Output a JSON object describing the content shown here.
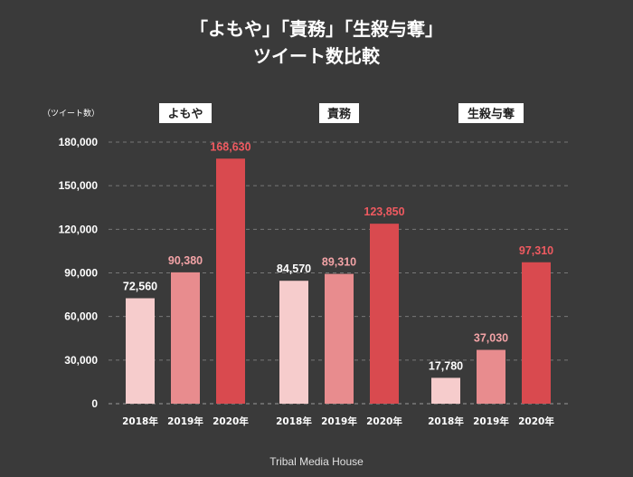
{
  "title_line1": "「よもや」「責務」「生殺与奪」",
  "title_line2": "ツイート数比較",
  "footer": "Tribal Media House",
  "colors": {
    "background": "#3a3a3a",
    "bar_2018": "#f6cccc",
    "bar_2019": "#e88c8e",
    "bar_2020": "#d94a4f",
    "value_label_2018": "#ffffff",
    "value_label_2019": "#f3a3a6",
    "value_label_2020": "#ef5a60",
    "grid": "#777777",
    "text": "#ffffff"
  },
  "chart_data": {
    "type": "bar",
    "title": "「よもや」「責務」「生殺与奪」ツイート数比較",
    "ylabel": "（ツイート数）",
    "ylim": [
      0,
      180000
    ],
    "yticks": [
      0,
      30000,
      60000,
      90000,
      120000,
      150000,
      180000
    ],
    "ytick_labels": [
      "0",
      "30,000",
      "60,000",
      "90,000",
      "120,000",
      "150,000",
      "180,000"
    ],
    "grid": true,
    "groups": [
      {
        "name": "よもや",
        "categories": [
          "2018年",
          "2019年",
          "2020年"
        ],
        "values": [
          72560,
          90380,
          168630
        ],
        "value_labels": [
          "72,560",
          "90,380",
          "168,630"
        ]
      },
      {
        "name": "責務",
        "categories": [
          "2018年",
          "2019年",
          "2020年"
        ],
        "values": [
          84570,
          89310,
          123850
        ],
        "value_labels": [
          "84,570",
          "89,310",
          "123,850"
        ]
      },
      {
        "name": "生殺与奪",
        "categories": [
          "2018年",
          "2019年",
          "2020年"
        ],
        "values": [
          17780,
          37030,
          97310
        ],
        "value_labels": [
          "17,780",
          "37,030",
          "97,310"
        ]
      }
    ]
  }
}
